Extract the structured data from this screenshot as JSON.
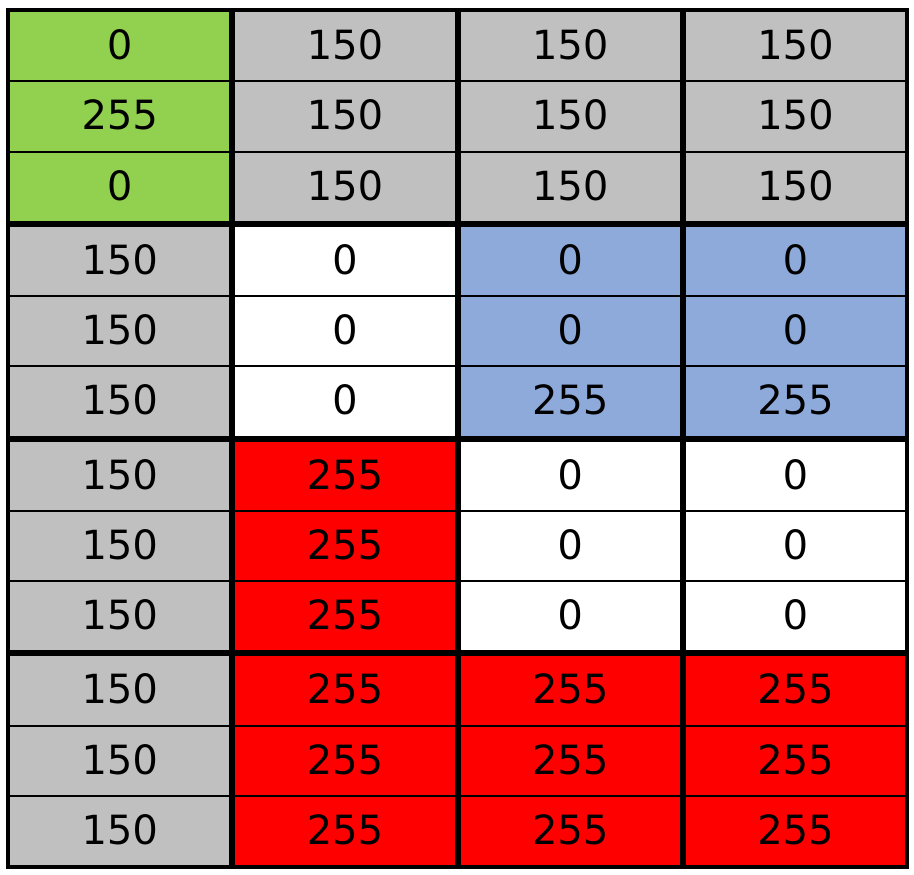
{
  "colors": {
    "green": "#92d050",
    "gray": "#c0c0c0",
    "white": "#ffffff",
    "blue": "#8eaadb",
    "red": "#ff0000"
  },
  "blocks": [
    {
      "color": "green",
      "values": [
        "0",
        "255",
        "0"
      ]
    },
    {
      "color": "gray",
      "values": [
        "150",
        "150",
        "150"
      ]
    },
    {
      "color": "gray",
      "values": [
        "150",
        "150",
        "150"
      ]
    },
    {
      "color": "gray",
      "values": [
        "150",
        "150",
        "150"
      ]
    },
    {
      "color": "gray",
      "values": [
        "150",
        "150",
        "150"
      ]
    },
    {
      "color": "white",
      "values": [
        "0",
        "0",
        "0"
      ]
    },
    {
      "color": "blue",
      "values": [
        "0",
        "0",
        "255"
      ]
    },
    {
      "color": "blue",
      "values": [
        "0",
        "0",
        "255"
      ]
    },
    {
      "color": "gray",
      "values": [
        "150",
        "150",
        "150"
      ]
    },
    {
      "color": "red",
      "values": [
        "255",
        "255",
        "255"
      ]
    },
    {
      "color": "white",
      "values": [
        "0",
        "0",
        "0"
      ]
    },
    {
      "color": "white",
      "values": [
        "0",
        "0",
        "0"
      ]
    },
    {
      "color": "gray",
      "values": [
        "150",
        "150",
        "150"
      ]
    },
    {
      "color": "red",
      "values": [
        "255",
        "255",
        "255"
      ]
    },
    {
      "color": "red",
      "values": [
        "255",
        "255",
        "255"
      ]
    },
    {
      "color": "red",
      "values": [
        "255",
        "255",
        "255"
      ]
    }
  ]
}
